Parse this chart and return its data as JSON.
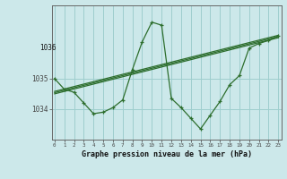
{
  "xlabel": "Graphe pression niveau de la mer (hPa)",
  "bg_color": "#cce8ea",
  "grid_color": "#9ecece",
  "line_color": "#2d6e2d",
  "x_data": [
    0,
    1,
    2,
    3,
    4,
    5,
    6,
    7,
    8,
    9,
    10,
    11,
    12,
    13,
    14,
    15,
    16,
    17,
    18,
    19,
    20,
    21,
    22,
    23
  ],
  "y_main": [
    1035.0,
    1034.65,
    1034.55,
    1034.2,
    1033.85,
    1033.9,
    1034.05,
    1034.3,
    1035.3,
    1036.2,
    1036.85,
    1036.75,
    1034.35,
    1034.05,
    1033.7,
    1033.35,
    1033.8,
    1034.25,
    1034.8,
    1035.1,
    1036.0,
    1036.15,
    1036.25,
    1036.4
  ],
  "ylim_min": 1033.2,
  "ylim_max": 1037.4,
  "ytick_vals": [
    1034,
    1035
  ],
  "ytick_top": 1036,
  "trend_lines": [
    [
      1034.58,
      1036.42
    ],
    [
      1034.54,
      1036.38
    ],
    [
      1034.5,
      1036.34
    ]
  ]
}
